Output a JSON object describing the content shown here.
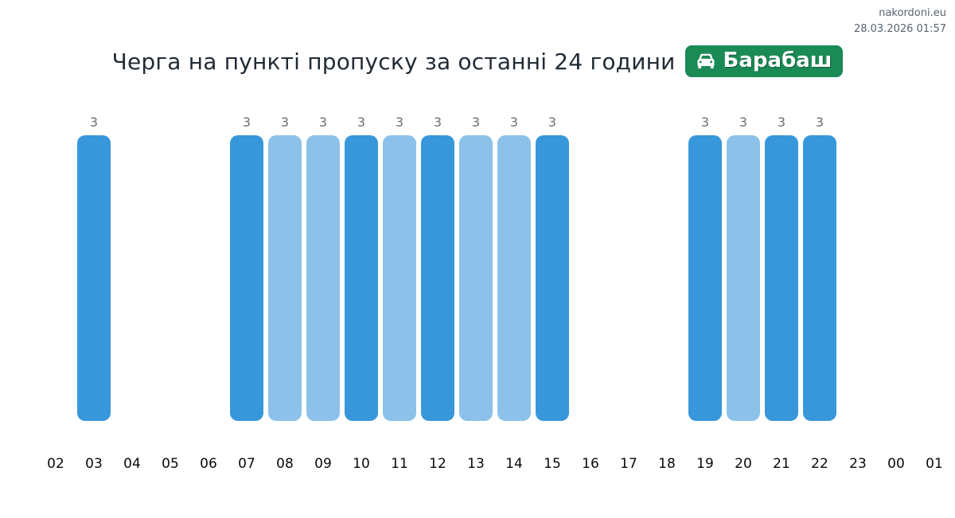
{
  "meta": {
    "site": "nakordoni.eu",
    "timestamp": "28.03.2026 01:57"
  },
  "header": {
    "title": "Черга на пункті пропуску за останні 24 години",
    "badge": {
      "label": "Барабаш",
      "icon": "car-icon",
      "background_color": "#1b8b56",
      "text_color": "#ffffff"
    }
  },
  "colors": {
    "bar_dark": "#3797da",
    "bar_light": "#8cc2e9",
    "value_label": "#696f75",
    "axis_label": "#0a0a0a",
    "meta_text": "#566470",
    "title_text": "#212b36",
    "background": "#ffffff"
  },
  "chart_data": {
    "type": "bar",
    "title": "Черга на пункті пропуску за останні 24 години",
    "subtitle_badge": "Барабаш",
    "categories": [
      "02",
      "03",
      "04",
      "05",
      "06",
      "07",
      "08",
      "09",
      "10",
      "11",
      "12",
      "13",
      "14",
      "15",
      "16",
      "17",
      "18",
      "19",
      "20",
      "21",
      "22",
      "23",
      "00",
      "01"
    ],
    "values": [
      null,
      3,
      null,
      null,
      null,
      3,
      3,
      3,
      3,
      3,
      3,
      3,
      3,
      3,
      null,
      null,
      null,
      3,
      3,
      3,
      3,
      null,
      null,
      null
    ],
    "bar_styles": [
      null,
      "dark",
      null,
      null,
      null,
      "dark",
      "light",
      "light",
      "dark",
      "light",
      "dark",
      "light",
      "light",
      "dark",
      null,
      null,
      null,
      "dark",
      "light",
      "dark",
      "dark",
      null,
      null,
      null
    ],
    "xlabel": "",
    "ylabel": "",
    "ylim": [
      0,
      3
    ],
    "grid": false,
    "legend": "none",
    "value_labels_shown": true
  }
}
